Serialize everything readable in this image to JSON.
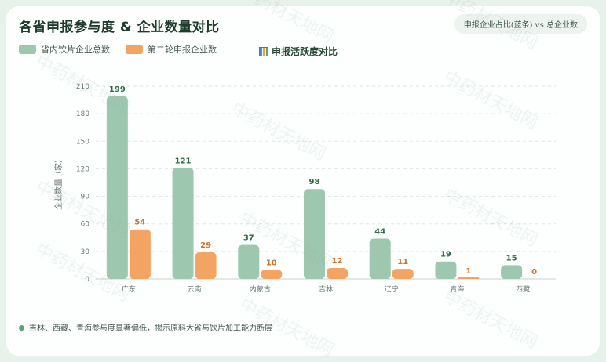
{
  "page": {
    "title": "各省申报参与度 & 企业数量对比",
    "badge": "申报企业占比(蓝条) vs 总企业数",
    "subtitle": "申报活跃度对比",
    "footnote": "吉林、西藏、青海参与度显著偏低，揭示原料大省与饮片加工能力断层",
    "watermark": "中药材天地网"
  },
  "legend": [
    {
      "label": "省内饮片企业总数",
      "color": "#9ec7af"
    },
    {
      "label": "第二轮申报企业数",
      "color": "#f4a462"
    }
  ],
  "chart_data": {
    "type": "bar",
    "title": "申报活跃度对比",
    "ylabel": "企业数量（家）",
    "categories": [
      "广东",
      "云南",
      "内蒙古",
      "吉林",
      "辽宁",
      "青海",
      "西藏"
    ],
    "series": [
      {
        "name": "省内饮片企业总数",
        "values": [
          199,
          121,
          37,
          98,
          44,
          19,
          15
        ]
      },
      {
        "name": "第二轮申报企业数",
        "values": [
          54,
          29,
          10,
          12,
          11,
          1,
          0
        ]
      }
    ],
    "ylim": [
      0,
      210
    ],
    "yticks": [
      0,
      30,
      60,
      90,
      120,
      150,
      180,
      210
    ],
    "grid": true,
    "legend_position": "top-left"
  }
}
